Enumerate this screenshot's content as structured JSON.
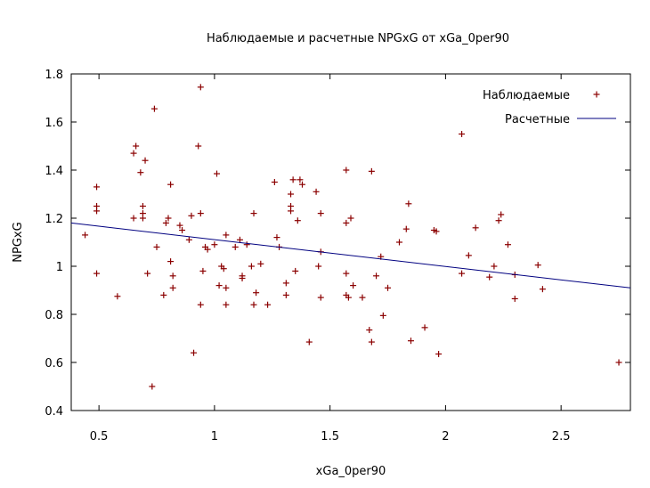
{
  "chart_data": {
    "type": "scatter",
    "title": "Наблюдаемые и расчетные NPGxG от xGa_0per90",
    "xlabel": "xGa_0per90",
    "ylabel": "NPGxG",
    "xlim": [
      0.38,
      2.8
    ],
    "ylim": [
      0.4,
      1.8
    ],
    "xticks": [
      "0.5",
      "1",
      "1.5",
      "2",
      "2.5"
    ],
    "xtick_values": [
      0.5,
      1.0,
      1.5,
      2.0,
      2.5
    ],
    "yticks": [
      "0.4",
      "0.6",
      "0.8",
      "1",
      "1.2",
      "1.4",
      "1.6",
      "1.8"
    ],
    "ytick_values": [
      0.4,
      0.6,
      0.8,
      1.0,
      1.2,
      1.4,
      1.6,
      1.8
    ],
    "grid": false,
    "legend_position": "top-right",
    "series": [
      {
        "name": "Наблюдаемые",
        "kind": "points",
        "marker": "plus",
        "color": "#8b0000",
        "points": [
          [
            0.44,
            1.13
          ],
          [
            0.49,
            1.33
          ],
          [
            0.49,
            1.25
          ],
          [
            0.49,
            1.23
          ],
          [
            0.49,
            0.97
          ],
          [
            0.58,
            0.875
          ],
          [
            0.65,
            1.47
          ],
          [
            0.66,
            1.5
          ],
          [
            0.65,
            1.2
          ],
          [
            0.68,
            1.39
          ],
          [
            0.69,
            1.25
          ],
          [
            0.69,
            1.22
          ],
          [
            0.69,
            1.2
          ],
          [
            0.7,
            1.44
          ],
          [
            0.71,
            0.97
          ],
          [
            0.73,
            0.5
          ],
          [
            0.74,
            1.655
          ],
          [
            0.75,
            1.08
          ],
          [
            0.78,
            0.88
          ],
          [
            0.79,
            1.18
          ],
          [
            0.8,
            1.2
          ],
          [
            0.81,
            1.34
          ],
          [
            0.81,
            1.02
          ],
          [
            0.82,
            0.96
          ],
          [
            0.82,
            0.91
          ],
          [
            0.85,
            1.17
          ],
          [
            0.86,
            1.15
          ],
          [
            0.89,
            1.11
          ],
          [
            0.9,
            1.21
          ],
          [
            0.91,
            0.64
          ],
          [
            0.93,
            1.5
          ],
          [
            0.94,
            1.745
          ],
          [
            0.94,
            1.22
          ],
          [
            0.94,
            0.84
          ],
          [
            0.95,
            0.98
          ],
          [
            0.96,
            1.08
          ],
          [
            0.97,
            1.07
          ],
          [
            1.0,
            1.09
          ],
          [
            1.01,
            1.385
          ],
          [
            1.02,
            0.92
          ],
          [
            1.03,
            1.0
          ],
          [
            1.04,
            0.99
          ],
          [
            1.05,
            1.13
          ],
          [
            1.05,
            0.91
          ],
          [
            1.05,
            0.84
          ],
          [
            1.09,
            1.08
          ],
          [
            1.11,
            1.11
          ],
          [
            1.12,
            0.96
          ],
          [
            1.12,
            0.95
          ],
          [
            1.14,
            1.09
          ],
          [
            1.16,
            1.0
          ],
          [
            1.17,
            1.22
          ],
          [
            1.17,
            0.84
          ],
          [
            1.18,
            0.89
          ],
          [
            1.2,
            1.01
          ],
          [
            1.23,
            0.84
          ],
          [
            1.26,
            1.35
          ],
          [
            1.27,
            1.12
          ],
          [
            1.28,
            1.08
          ],
          [
            1.31,
            0.93
          ],
          [
            1.31,
            0.88
          ],
          [
            1.33,
            1.3
          ],
          [
            1.33,
            1.25
          ],
          [
            1.33,
            1.23
          ],
          [
            1.34,
            1.36
          ],
          [
            1.35,
            0.98
          ],
          [
            1.36,
            1.19
          ],
          [
            1.37,
            1.36
          ],
          [
            1.38,
            1.34
          ],
          [
            1.41,
            0.685
          ],
          [
            1.44,
            1.31
          ],
          [
            1.45,
            1.0
          ],
          [
            1.46,
            1.22
          ],
          [
            1.46,
            1.06
          ],
          [
            1.46,
            0.87
          ],
          [
            1.57,
            1.4
          ],
          [
            1.57,
            1.18
          ],
          [
            1.57,
            0.97
          ],
          [
            1.57,
            0.88
          ],
          [
            1.58,
            0.87
          ],
          [
            1.59,
            1.2
          ],
          [
            1.6,
            0.92
          ],
          [
            1.64,
            0.87
          ],
          [
            1.67,
            0.735
          ],
          [
            1.68,
            1.395
          ],
          [
            1.68,
            0.685
          ],
          [
            1.7,
            0.96
          ],
          [
            1.72,
            1.04
          ],
          [
            1.73,
            0.795
          ],
          [
            1.75,
            0.91
          ],
          [
            1.8,
            1.1
          ],
          [
            1.83,
            1.155
          ],
          [
            1.84,
            1.26
          ],
          [
            1.85,
            0.69
          ],
          [
            1.91,
            0.745
          ],
          [
            1.95,
            1.15
          ],
          [
            1.96,
            1.145
          ],
          [
            1.97,
            0.635
          ],
          [
            2.07,
            1.55
          ],
          [
            2.07,
            0.97
          ],
          [
            2.1,
            1.045
          ],
          [
            2.13,
            1.16
          ],
          [
            2.19,
            0.955
          ],
          [
            2.21,
            1.0
          ],
          [
            2.23,
            1.19
          ],
          [
            2.24,
            1.215
          ],
          [
            2.27,
            1.09
          ],
          [
            2.3,
            0.965
          ],
          [
            2.3,
            0.865
          ],
          [
            2.4,
            1.005
          ],
          [
            2.42,
            0.905
          ],
          [
            2.75,
            0.6
          ]
        ]
      },
      {
        "name": "Расчетные",
        "kind": "line",
        "color": "#000080",
        "points": [
          [
            0.38,
            1.18
          ],
          [
            2.8,
            0.91
          ]
        ]
      }
    ]
  }
}
